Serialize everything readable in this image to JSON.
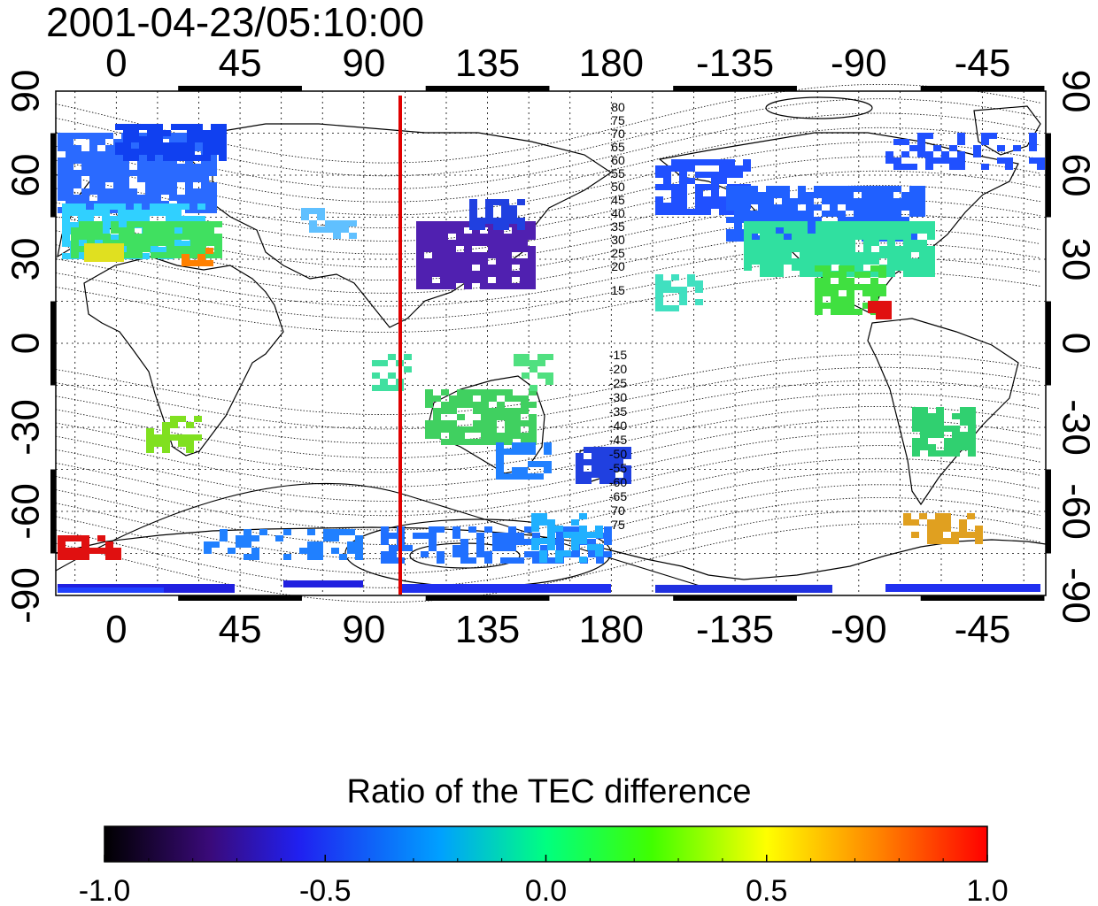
{
  "timestamp": "2001-04-23/05:10:00",
  "top_lon_labels": [
    "0",
    "45",
    "90",
    "135",
    "180",
    "-135",
    "-90",
    "-45"
  ],
  "bottom_lon_labels": [
    "0",
    "45",
    "90",
    "135",
    "180",
    "-135",
    "-90",
    "-45"
  ],
  "left_lat_labels": [
    "90",
    "60",
    "30",
    "0",
    "-30",
    "-60",
    "-90"
  ],
  "right_lat_labels": [
    "90",
    "60",
    "30",
    "0",
    "-30",
    "-60",
    "-90"
  ],
  "contour_labels_north": [
    "80",
    "75",
    "70",
    "65",
    "60",
    "55",
    "50",
    "45",
    "40",
    "35",
    "30",
    "25",
    "20",
    "15"
  ],
  "contour_labels_south": [
    "-15",
    "-20",
    "-25",
    "-30",
    "-35",
    "-40",
    "-45",
    "-50",
    "-55",
    "-60",
    "-65",
    "70",
    "75"
  ],
  "marker_longitude": 103,
  "colorbar": {
    "title": "Ratio of the TEC difference",
    "ticks": [
      "-1.0",
      "-0.5",
      "0.0",
      "0.5",
      "1.0"
    ],
    "range": [
      -1.0,
      1.0
    ]
  },
  "colors": {
    "marker_line": "#e00000",
    "colormap": [
      "#000000",
      "#3a0a7a",
      "#2020f0",
      "#00e8ff",
      "#00ff00",
      "#ffff00",
      "#ff0000"
    ]
  }
}
